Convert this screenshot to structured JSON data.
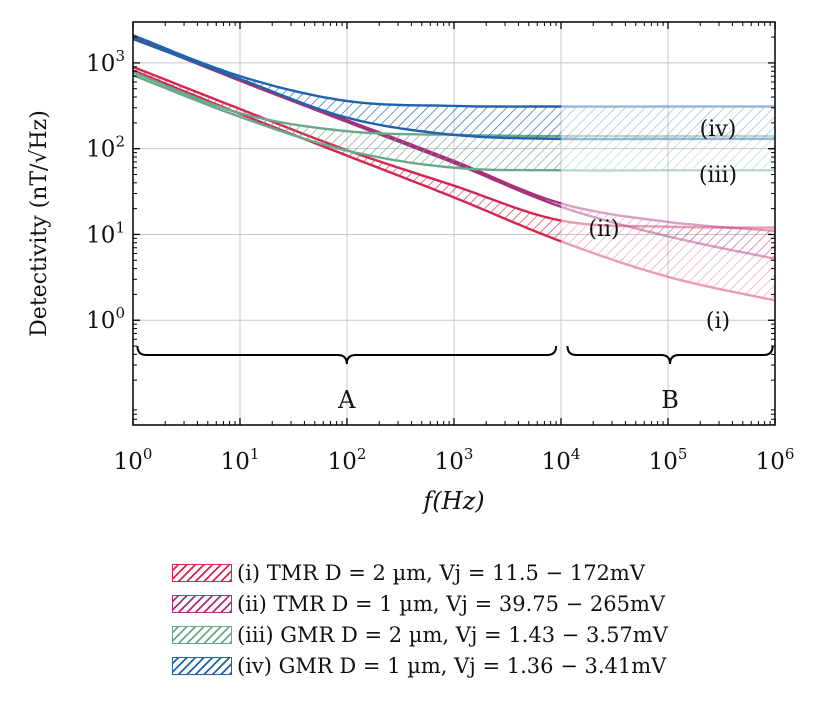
{
  "chart_data": {
    "type": "area",
    "title": "",
    "xlabel": "f(Hz)",
    "ylabel": "Detectivity (nT/√Hz)",
    "xscale": "log",
    "yscale": "log",
    "xlim": [
      1,
      1000000
    ],
    "ylim": [
      0.06,
      3000
    ],
    "grid": true,
    "x_ticks": [
      {
        "value": 1,
        "base": "10",
        "exp": "0"
      },
      {
        "value": 10,
        "base": "10",
        "exp": "1"
      },
      {
        "value": 100,
        "base": "10",
        "exp": "2"
      },
      {
        "value": 1000,
        "base": "10",
        "exp": "3"
      },
      {
        "value": 10000,
        "base": "10",
        "exp": "4"
      },
      {
        "value": 100000,
        "base": "10",
        "exp": "5"
      },
      {
        "value": 1000000,
        "base": "10",
        "exp": "6"
      }
    ],
    "y_ticks": [
      {
        "value": 1,
        "base": "10",
        "exp": "0"
      },
      {
        "value": 10,
        "base": "10",
        "exp": "1"
      },
      {
        "value": 100,
        "base": "10",
        "exp": "2"
      },
      {
        "value": 1000,
        "base": "10",
        "exp": "3"
      }
    ],
    "series": [
      {
        "id": "i",
        "name": "(i) TMR D = 2 µm, Vj = 11.5 − 172mV",
        "label": "(i)",
        "color": "#d6264f",
        "upper": {
          "x": [
            1,
            10,
            100,
            1000,
            10000,
            100000,
            1000000
          ],
          "y": [
            900,
            290,
            96,
            37,
            14.5,
            12.3,
            12.0
          ]
        },
        "lower": {
          "x": [
            1,
            10,
            100,
            1000,
            10000,
            100000,
            1000000
          ],
          "y": [
            820,
            255,
            83,
            27,
            8.3,
            3.2,
            1.7
          ]
        }
      },
      {
        "id": "ii",
        "name": "(ii) TMR D = 1 µm, Vj = 39.75 − 265mV",
        "label": "(ii)",
        "color": "#a8307a",
        "upper": {
          "x": [
            1,
            10,
            100,
            1000,
            10000,
            100000,
            1000000
          ],
          "y": [
            2000,
            640,
            215,
            72,
            23,
            14,
            11
          ]
        },
        "lower": {
          "x": [
            1,
            10,
            100,
            1000,
            10000,
            100000,
            1000000
          ],
          "y": [
            1950,
            620,
            205,
            68,
            21,
            9.5,
            5.2
          ]
        }
      },
      {
        "id": "iii",
        "name": "(iii) GMR D = 2 µm, Vj = 1.43 − 3.57mV",
        "label": "(iii)",
        "color": "#6aa88c",
        "upper": {
          "x": [
            1,
            10,
            100,
            1000,
            10000,
            100000,
            1000000
          ],
          "y": [
            780,
            260,
            160,
            145,
            140,
            140,
            140
          ]
        },
        "lower": {
          "x": [
            1,
            10,
            100,
            1000,
            10000,
            100000,
            1000000
          ],
          "y": [
            720,
            235,
            95,
            60,
            56,
            56,
            56
          ]
        }
      },
      {
        "id": "iv",
        "name": "(iv) GMR D = 1 µm, Vj = 1.36 − 3.41mV",
        "label": "(iv)",
        "color": "#1f63ab",
        "upper": {
          "x": [
            1,
            10,
            100,
            1000,
            10000,
            100000,
            1000000
          ],
          "y": [
            2100,
            700,
            360,
            315,
            310,
            310,
            310
          ]
        },
        "lower": {
          "x": [
            1,
            10,
            100,
            1000,
            10000,
            100000,
            1000000
          ],
          "y": [
            1900,
            650,
            230,
            145,
            130,
            130,
            130
          ]
        }
      }
    ],
    "regions": [
      {
        "label": "A",
        "x_range": [
          1.1,
          9000
        ]
      },
      {
        "label": "B",
        "x_range": [
          11500,
          950000
        ]
      }
    ],
    "faded_from_x": 10000
  },
  "legend": {
    "entries": [
      {
        "text": "(i)  TMR D = 2 µm, Vj = 11.5 − 172mV"
      },
      {
        "text": "(ii)  TMR D = 1 µm, Vj = 39.75 − 265mV"
      },
      {
        "text": "(iii)  GMR D = 2 µm, Vj = 1.43 − 3.57mV"
      },
      {
        "text": "(iv)  GMR D = 1 µm, Vj = 1.36 − 3.41mV"
      }
    ]
  }
}
